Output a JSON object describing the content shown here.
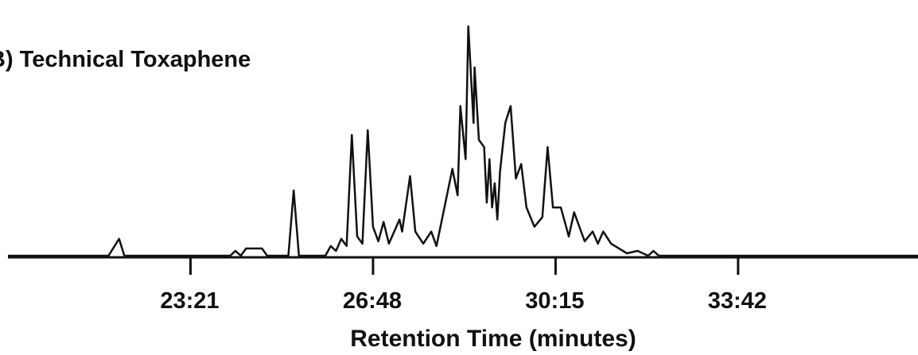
{
  "chart_data": {
    "type": "line",
    "title": "B) Technical Toxaphene",
    "xlabel": "Retention Time (minutes)",
    "ylabel": "",
    "x_ticks": [
      "23:21",
      "26:48",
      "30:15",
      "33:42"
    ],
    "x_tick_minutes": [
      23.35,
      26.8,
      30.25,
      33.7
    ],
    "xlim_minutes": [
      19.9,
      37.1
    ],
    "ylim": [
      0,
      1
    ],
    "grid": false,
    "series": [
      {
        "points": [
          [
            19.9,
            0.0
          ],
          [
            21.8,
            0.0
          ],
          [
            22.0,
            0.07
          ],
          [
            22.1,
            0.0
          ],
          [
            24.1,
            0.0
          ],
          [
            24.2,
            0.02
          ],
          [
            24.3,
            0.0
          ],
          [
            24.4,
            0.03
          ],
          [
            24.7,
            0.03
          ],
          [
            24.8,
            0.0
          ],
          [
            25.2,
            0.0
          ],
          [
            25.3,
            0.27
          ],
          [
            25.4,
            0.0
          ],
          [
            25.9,
            0.0
          ],
          [
            26.0,
            0.04
          ],
          [
            26.1,
            0.02
          ],
          [
            26.2,
            0.07
          ],
          [
            26.3,
            0.04
          ],
          [
            26.4,
            0.5
          ],
          [
            26.5,
            0.08
          ],
          [
            26.6,
            0.05
          ],
          [
            26.7,
            0.52
          ],
          [
            26.8,
            0.12
          ],
          [
            26.9,
            0.06
          ],
          [
            27.0,
            0.14
          ],
          [
            27.1,
            0.05
          ],
          [
            27.3,
            0.15
          ],
          [
            27.35,
            0.1
          ],
          [
            27.5,
            0.33
          ],
          [
            27.6,
            0.1
          ],
          [
            27.75,
            0.05
          ],
          [
            27.9,
            0.1
          ],
          [
            28.0,
            0.04
          ],
          [
            28.3,
            0.36
          ],
          [
            28.4,
            0.25
          ],
          [
            28.45,
            0.62
          ],
          [
            28.55,
            0.4
          ],
          [
            28.6,
            0.95
          ],
          [
            28.7,
            0.55
          ],
          [
            28.72,
            0.78
          ],
          [
            28.8,
            0.48
          ],
          [
            28.9,
            0.45
          ],
          [
            28.95,
            0.22
          ],
          [
            29.0,
            0.4
          ],
          [
            29.05,
            0.2
          ],
          [
            29.1,
            0.3
          ],
          [
            29.15,
            0.15
          ],
          [
            29.2,
            0.35
          ],
          [
            29.3,
            0.55
          ],
          [
            29.4,
            0.62
          ],
          [
            29.5,
            0.32
          ],
          [
            29.6,
            0.38
          ],
          [
            29.7,
            0.2
          ],
          [
            29.85,
            0.12
          ],
          [
            30.0,
            0.16
          ],
          [
            30.1,
            0.45
          ],
          [
            30.2,
            0.2
          ],
          [
            30.35,
            0.2
          ],
          [
            30.5,
            0.08
          ],
          [
            30.6,
            0.18
          ],
          [
            30.7,
            0.12
          ],
          [
            30.8,
            0.06
          ],
          [
            30.95,
            0.1
          ],
          [
            31.05,
            0.05
          ],
          [
            31.15,
            0.1
          ],
          [
            31.3,
            0.05
          ],
          [
            31.45,
            0.03
          ],
          [
            31.6,
            0.01
          ],
          [
            31.8,
            0.02
          ],
          [
            32.0,
            0.0
          ],
          [
            32.1,
            0.02
          ],
          [
            32.2,
            0.0
          ],
          [
            37.1,
            0.0
          ]
        ]
      }
    ]
  }
}
